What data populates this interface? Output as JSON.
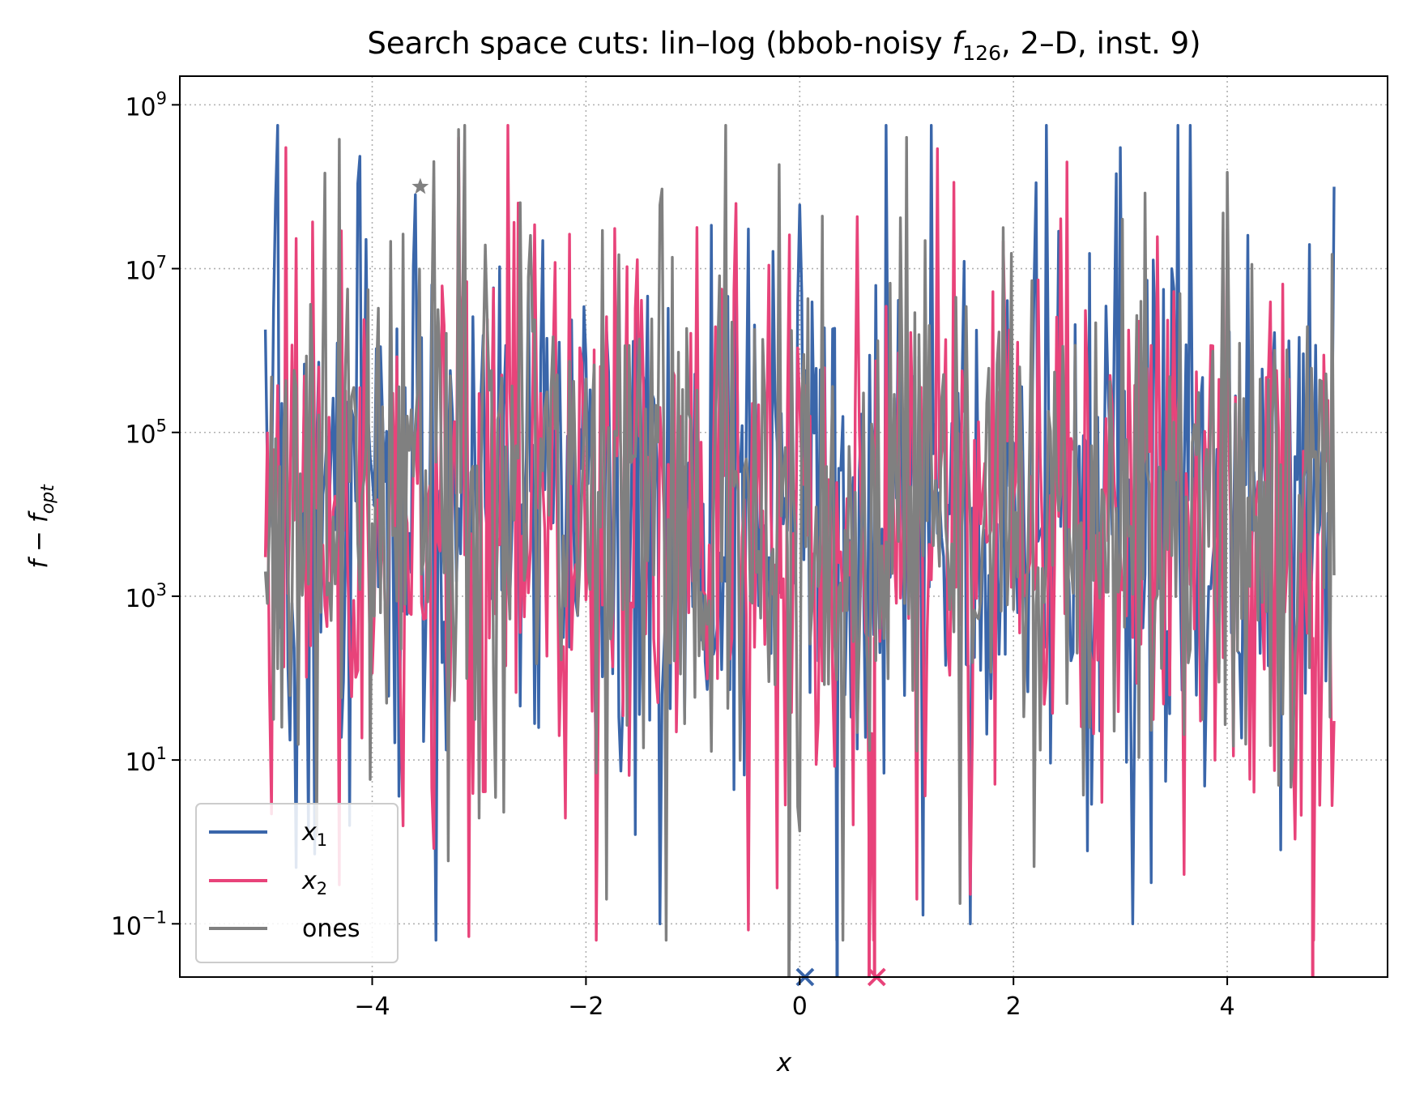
{
  "chart_data": {
    "type": "line",
    "title": {
      "prefix": "Search space cuts: lin–log (bbob-noisy ",
      "func": "f",
      "func_sub": "126",
      "suffix": ", 2–D, inst. 9)"
    },
    "xlabel": "x",
    "ylabel": {
      "main": "f − f",
      "sub": "opt"
    },
    "xlim": [
      -5.8,
      5.5
    ],
    "ylim_log10": [
      -1.65,
      9.35
    ],
    "yscale": "log",
    "grid": true,
    "legend_position": "lower-left",
    "x_ticks": [
      {
        "value": -4,
        "label": "−4"
      },
      {
        "value": -2,
        "label": "−2"
      },
      {
        "value": 0,
        "label": "0"
      },
      {
        "value": 2,
        "label": "2"
      },
      {
        "value": 4,
        "label": "4"
      }
    ],
    "y_ticks": [
      {
        "exp": 9,
        "base": "10",
        "sup": "9"
      },
      {
        "exp": 7,
        "base": "10",
        "sup": "7"
      },
      {
        "exp": 5,
        "base": "10",
        "sup": "5"
      },
      {
        "exp": 3,
        "base": "10",
        "sup": "3"
      },
      {
        "exp": 1,
        "base": "10",
        "sup": "1"
      },
      {
        "exp": -1,
        "base": "10",
        "sup": "−1"
      }
    ],
    "x_range": [
      -5,
      5
    ],
    "series": [
      {
        "name": "x",
        "name_sub": "1",
        "color": "#3a66aa",
        "seed": 11,
        "sample_points": [
          [
            -5.0,
            1800000
          ],
          [
            -4.9,
            70000000
          ],
          [
            -4.6,
            1.2
          ],
          [
            -3.6,
            80000000
          ],
          [
            -1.3,
            0.1
          ],
          [
            0.0,
            60000000
          ],
          [
            0.35,
            0.01
          ],
          [
            0.8,
            600000000
          ],
          [
            1.6,
            0.1
          ],
          [
            3.0,
            300000000
          ],
          [
            3.65,
            600000000
          ],
          [
            4.5,
            0.8
          ],
          [
            5.0,
            100000000
          ]
        ]
      },
      {
        "name": "x",
        "name_sub": "2",
        "color": "#e8437a",
        "seed": 23,
        "sample_points": [
          [
            -5.0,
            3000
          ],
          [
            -4.8,
            300000000
          ],
          [
            -4.3,
            0.3
          ],
          [
            -3.1,
            0.07
          ],
          [
            -3.2,
            400000000
          ],
          [
            -1.9,
            0.05
          ],
          [
            0.65,
            0.002
          ],
          [
            0.7,
            0.003
          ],
          [
            1.1,
            0.2
          ],
          [
            2.5,
            200000000
          ],
          [
            3.6,
            0.4
          ],
          [
            4.8,
            0.007
          ],
          [
            5.0,
            30
          ]
        ]
      },
      {
        "name": "ones",
        "name_sub": "",
        "color": "#808080",
        "seed": 37,
        "sample_points": [
          [
            -5.0,
            2000
          ],
          [
            -4.3,
            380000000
          ],
          [
            -3.2,
            500000000
          ],
          [
            -1.8,
            0.2
          ],
          [
            -0.1,
            0.001
          ],
          [
            1.0,
            400000000
          ],
          [
            2.2,
            0.5
          ],
          [
            4.0,
            150000000
          ],
          [
            5.0,
            1800
          ]
        ]
      }
    ],
    "annotations": [
      {
        "marker": "star",
        "x": -3.55,
        "y": 100000000,
        "color": "#808080"
      },
      {
        "marker": "x",
        "x": 0.05,
        "y": 0.002,
        "color": "#3a66aa"
      },
      {
        "marker": "x",
        "x": 0.72,
        "y": 0.002,
        "color": "#e8437a"
      }
    ]
  }
}
